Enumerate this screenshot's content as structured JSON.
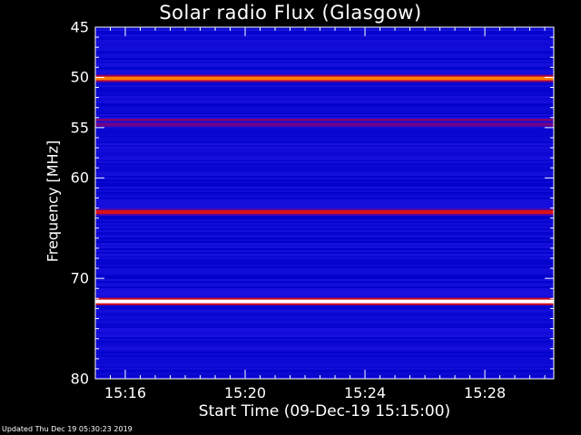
{
  "chart_data": {
    "type": "heatmap",
    "title": "Solar radio Flux (Glasgow)",
    "ylabel": "Frequency [MHz]",
    "y_label_text": "Frequency ",
    "y_label_unit": "[MHz]",
    "xlabel": "Start Time (09-Dec-19 15:15:00)",
    "ylim": [
      45,
      80
    ],
    "y_inverted": true,
    "y_ticks": [
      45,
      50,
      55,
      60,
      70,
      80
    ],
    "xlim_minutes": [
      15.0,
      30.3
    ],
    "x_ticks": [
      {
        "label": "15:16",
        "minute": 16
      },
      {
        "label": "15:20",
        "minute": 20
      },
      {
        "label": "15:24",
        "minute": 24
      },
      {
        "label": "15:28",
        "minute": 28
      }
    ],
    "colormap": [
      "#000010",
      "#0000c8",
      "#1a12e0",
      "#7a0080",
      "#cc0020",
      "#ff3300",
      "#ff9900",
      "#ffffff"
    ],
    "background_intensity": 0.22,
    "emission_bands": [
      {
        "freq_mhz": 50.1,
        "intensity": 0.82
      },
      {
        "freq_mhz": 54.3,
        "intensity": 0.46
      },
      {
        "freq_mhz": 54.7,
        "intensity": 0.42
      },
      {
        "freq_mhz": 63.4,
        "intensity": 0.62
      },
      {
        "freq_mhz": 72.3,
        "intensity": 1.0
      }
    ],
    "footer": "Updated Thu Dec 19 05:30:23 2019"
  }
}
